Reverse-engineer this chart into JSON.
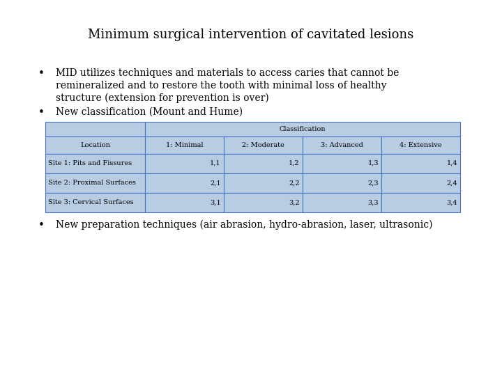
{
  "title": "Minimum surgical intervention of cavitated lesions",
  "bullet1_line1": "MID utilizes techniques and materials to access caries that cannot be",
  "bullet1_line2": "remineralized and to restore the tooth with minimal loss of healthy",
  "bullet1_line3": "structure (extension for prevention is over)",
  "bullet2": "New classification (Mount and Hume)",
  "bullet3": "New preparation techniques (air abrasion, hydro-abrasion, laser, ultrasonic)",
  "table_header_main": "Classification",
  "table_col0": "Location",
  "table_cols": [
    "1: Minimal",
    "2: Moderate",
    "3: Advanced",
    "4: Extensive"
  ],
  "table_rows": [
    [
      "Site 1: Pits and Fissures",
      "1,1",
      "1,2",
      "1,3",
      "1,4"
    ],
    [
      "Site 2: Proximal Surfaces",
      "2,1",
      "2,2",
      "2,3",
      "2,4"
    ],
    [
      "Site 3: Cervical Surfaces",
      "3,1",
      "3,2",
      "3,3",
      "3,4"
    ]
  ],
  "table_bg_color": "#b8cce4",
  "table_border_color": "#4472c4",
  "bg_color": "#ffffff",
  "text_color": "#000000",
  "title_fontsize": 13,
  "body_fontsize": 10,
  "table_fontsize": 7
}
